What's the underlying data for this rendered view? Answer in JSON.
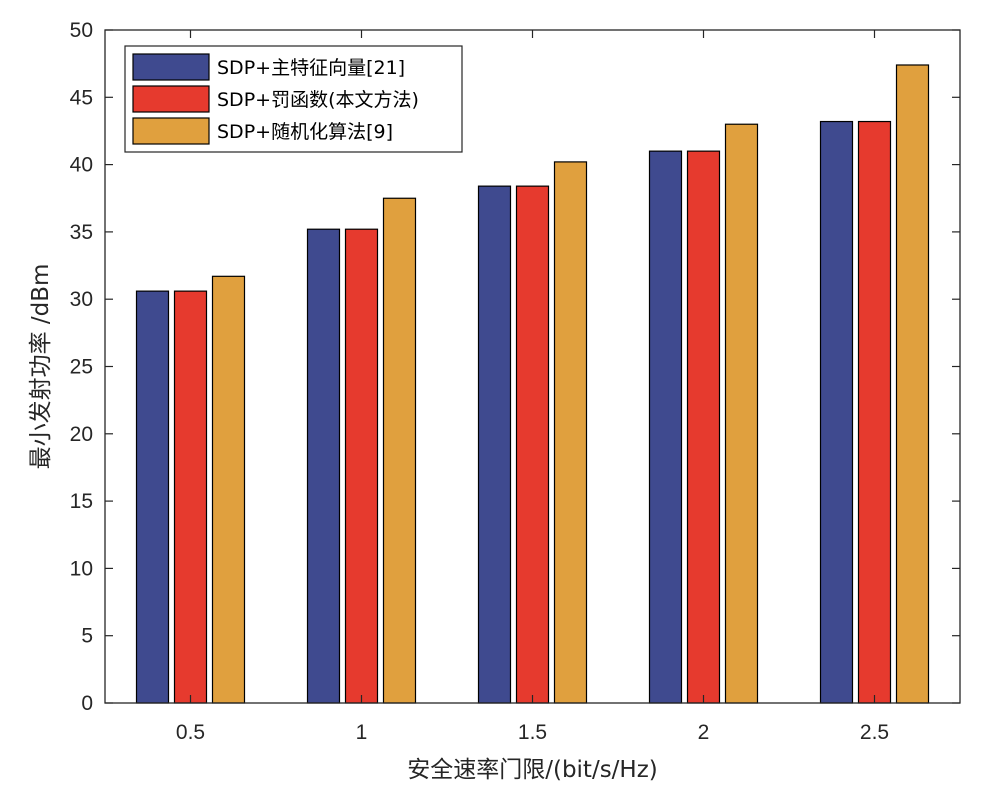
{
  "chart_data": {
    "type": "bar",
    "title": "",
    "xlabel": "安全速率门限/(bit/s/Hz)",
    "ylabel": "最小发射功率 /dBm",
    "categories": [
      "0.5",
      "1",
      "1.5",
      "2",
      "2.5"
    ],
    "ylim": [
      0,
      50
    ],
    "yticks": [
      0,
      5,
      10,
      15,
      20,
      25,
      30,
      35,
      40,
      45,
      50
    ],
    "grid": false,
    "legend_position": "top-left",
    "series": [
      {
        "name": "SDP+主特征向量[21]",
        "color": "#3f4a8f",
        "values": [
          30.6,
          35.2,
          38.4,
          41.0,
          43.2
        ]
      },
      {
        "name": "SDP+罚函数(本文方法)",
        "color": "#e63a2e",
        "values": [
          30.6,
          35.2,
          38.4,
          41.0,
          43.2
        ]
      },
      {
        "name": "SDP+随机化算法[9]",
        "color": "#e0a03e",
        "values": [
          31.7,
          37.5,
          40.2,
          43.0,
          47.4
        ]
      }
    ]
  }
}
